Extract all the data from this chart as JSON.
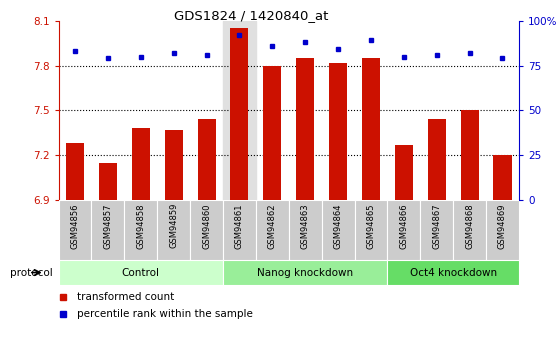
{
  "title": "GDS1824 / 1420840_at",
  "samples": [
    "GSM94856",
    "GSM94857",
    "GSM94858",
    "GSM94859",
    "GSM94860",
    "GSM94861",
    "GSM94862",
    "GSM94863",
    "GSM94864",
    "GSM94865",
    "GSM94866",
    "GSM94867",
    "GSM94868",
    "GSM94869"
  ],
  "bar_values": [
    7.28,
    7.15,
    7.38,
    7.37,
    7.44,
    8.05,
    7.8,
    7.85,
    7.82,
    7.85,
    7.27,
    7.44,
    7.5,
    7.2
  ],
  "dot_values": [
    83,
    79,
    80,
    82,
    81,
    92,
    86,
    88,
    84,
    89,
    80,
    81,
    82,
    79
  ],
  "ylim_left": [
    6.9,
    8.1
  ],
  "ylim_right": [
    0,
    100
  ],
  "yticks_left": [
    6.9,
    7.2,
    7.5,
    7.8,
    8.1
  ],
  "yticks_right": [
    0,
    25,
    50,
    75,
    100
  ],
  "ytick_labels_right": [
    "0",
    "25",
    "50",
    "75",
    "100%"
  ],
  "bar_color": "#cc1100",
  "dot_color": "#0000cc",
  "groups": [
    {
      "label": "Control",
      "start": 0,
      "end": 5,
      "color": "#ccffcc"
    },
    {
      "label": "Nanog knockdown",
      "start": 5,
      "end": 10,
      "color": "#99ee99"
    },
    {
      "label": "Oct4 knockdown",
      "start": 10,
      "end": 14,
      "color": "#66dd66"
    }
  ],
  "protocol_label": "protocol",
  "legend_items": [
    {
      "label": "transformed count",
      "color": "#cc1100"
    },
    {
      "label": "percentile rank within the sample",
      "color": "#0000cc"
    }
  ],
  "grid_dotted_at": [
    7.2,
    7.5,
    7.8
  ],
  "highlight_sample_idx": 5,
  "highlight_bg": "#e0e0e0",
  "bar_width": 0.55,
  "xtick_bg": "#cccccc"
}
